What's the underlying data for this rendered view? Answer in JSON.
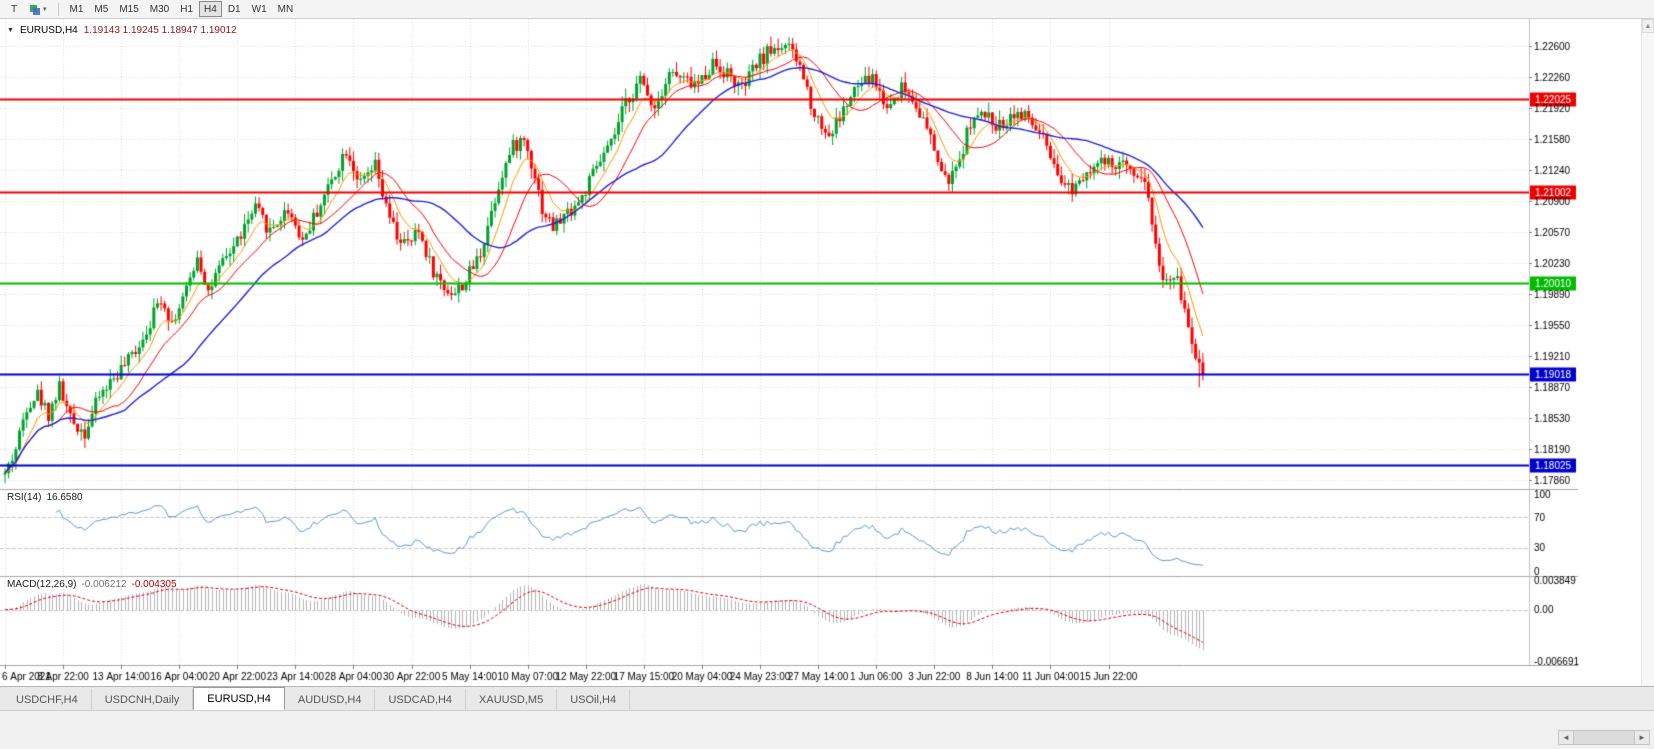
{
  "icons": {
    "caret_down": "▾",
    "title_marker": "▼",
    "scroll_up": "▲",
    "scroll_left": "◄",
    "scroll_right": "►"
  },
  "toolbar": {
    "pointer_label": "T",
    "timeframes": [
      "M1",
      "M5",
      "M15",
      "M30",
      "H1",
      "H4",
      "D1",
      "W1",
      "MN"
    ],
    "active_timeframe": "H4"
  },
  "chart": {
    "symbol_title": "EURUSD,H4",
    "ohlc_text": "1.19143 1.19245 1.18947 1.19012",
    "price_axis": [
      "1.22600",
      "1.22260",
      "1.21920",
      "1.21580",
      "1.21240",
      "1.20900",
      "1.20570",
      "1.20230",
      "1.19890",
      "1.19550",
      "1.19210",
      "1.18870",
      "1.18530",
      "1.18190",
      "1.17860"
    ],
    "time_axis": [
      "6 Apr 2021",
      "8 Apr 22:00",
      "13 Apr 14:00",
      "16 Apr 04:00",
      "20 Apr 22:00",
      "23 Apr 14:00",
      "28 Apr 04:00",
      "30 Apr 22:00",
      "5 May 14:00",
      "10 May 07:00",
      "12 May 22:00",
      "17 May 15:00",
      "20 May 04:00",
      "24 May 23:00",
      "27 May 14:00",
      "1 Jun 06:00",
      "3 Jun 22:00",
      "8 Jun 14:00",
      "11 Jun 04:00",
      "15 Jun 22:00"
    ],
    "hlines": [
      {
        "price": 1.22025,
        "text": "1.22025",
        "color": "#ee0000"
      },
      {
        "price": 1.21002,
        "text": "1.21002",
        "color": "#ee0000"
      },
      {
        "price": 1.2001,
        "text": "1.20010",
        "color": "#00bb00"
      },
      {
        "price": 1.19018,
        "text": "1.19018",
        "color": "#0000cc"
      },
      {
        "price": 1.18025,
        "text": "1.18025",
        "color": "#0000cc"
      }
    ]
  },
  "rsi_panel": {
    "name": "RSI(14)",
    "value_text": "16.6580",
    "line_color": "#5b9bd5",
    "dashed_levels": [
      70,
      30
    ],
    "levels": [
      {
        "text": "100",
        "value": 100
      },
      {
        "text": "70",
        "value": 70
      },
      {
        "text": "30",
        "value": 30
      },
      {
        "text": "0",
        "value": 0
      }
    ]
  },
  "macd_panel": {
    "name": "MACD(12,26,9)",
    "main_text": "-0.006212",
    "signal_text": "-0.004305",
    "hist_color": "#b4b4b4",
    "signal_color": "#e00000",
    "scale": [
      {
        "text": "0.003849",
        "value": 0.003849
      },
      {
        "text": "0.00",
        "value": 0
      },
      {
        "text": "-0.006691",
        "value": -0.006691
      }
    ]
  },
  "tabs": [
    {
      "label": "USDCHF,H4",
      "active": false
    },
    {
      "label": "USDCNH,Daily",
      "active": false
    },
    {
      "label": "EURUSD,H4",
      "active": true
    },
    {
      "label": "AUDUSD,H4",
      "active": false
    },
    {
      "label": "USDCAD,H4",
      "active": false
    },
    {
      "label": "XAUUSD,M5",
      "active": false
    },
    {
      "label": "USOil,H4",
      "active": false
    }
  ],
  "chart_data": {
    "type": "candlestick",
    "symbol": "EURUSD",
    "timeframe": "H4",
    "candle_count": 331,
    "candles_per_label": 16,
    "visible_price_range": [
      1.1776,
      1.229
    ],
    "up_color": "#00a22c",
    "down_color": "#ff0000",
    "noise": 0.0016,
    "seed": 42,
    "last_candle": {
      "o": 1.19143,
      "h": 1.19245,
      "l": 1.18947,
      "c": 1.19012
    },
    "anchors": [
      [
        0,
        1.1792
      ],
      [
        3,
        1.182
      ],
      [
        6,
        1.1868
      ],
      [
        9,
        1.188
      ],
      [
        12,
        1.1858
      ],
      [
        15,
        1.1888
      ],
      [
        18,
        1.1852
      ],
      [
        22,
        1.1838
      ],
      [
        26,
        1.1878
      ],
      [
        30,
        1.1898
      ],
      [
        34,
        1.1916
      ],
      [
        38,
        1.1942
      ],
      [
        43,
        1.1986
      ],
      [
        46,
        1.1958
      ],
      [
        50,
        1.1992
      ],
      [
        53,
        1.2032
      ],
      [
        56,
        1.1992
      ],
      [
        60,
        1.2022
      ],
      [
        64,
        1.2048
      ],
      [
        69,
        1.2082
      ],
      [
        73,
        1.2058
      ],
      [
        78,
        1.2082
      ],
      [
        82,
        1.2048
      ],
      [
        87,
        1.2088
      ],
      [
        91,
        1.2122
      ],
      [
        94,
        1.2148
      ],
      [
        98,
        1.2108
      ],
      [
        102,
        1.2128
      ],
      [
        105,
        1.2082
      ],
      [
        108,
        1.2052
      ],
      [
        111,
        1.2042
      ],
      [
        114,
        1.2058
      ],
      [
        118,
        1.2014
      ],
      [
        121,
        1.1996
      ],
      [
        124,
        1.199
      ],
      [
        127,
        1.2004
      ],
      [
        131,
        1.2034
      ],
      [
        134,
        1.208
      ],
      [
        137,
        1.2122
      ],
      [
        140,
        1.215
      ],
      [
        143,
        1.2158
      ],
      [
        146,
        1.212
      ],
      [
        148,
        1.2082
      ],
      [
        151,
        1.2062
      ],
      [
        155,
        1.2078
      ],
      [
        159,
        1.2094
      ],
      [
        163,
        1.2128
      ],
      [
        167,
        1.2152
      ],
      [
        171,
        1.2198
      ],
      [
        175,
        1.2222
      ],
      [
        179,
        1.2194
      ],
      [
        183,
        1.2232
      ],
      [
        187,
        1.2222
      ],
      [
        191,
        1.2218
      ],
      [
        195,
        1.2242
      ],
      [
        199,
        1.223
      ],
      [
        203,
        1.2212
      ],
      [
        207,
        1.224
      ],
      [
        211,
        1.2256
      ],
      [
        215,
        1.2262
      ],
      [
        219,
        1.2238
      ],
      [
        223,
        1.2186
      ],
      [
        227,
        1.2162
      ],
      [
        231,
        1.219
      ],
      [
        235,
        1.2216
      ],
      [
        239,
        1.2226
      ],
      [
        243,
        1.2192
      ],
      [
        247,
        1.2216
      ],
      [
        251,
        1.2198
      ],
      [
        255,
        1.2158
      ],
      [
        259,
        1.2112
      ],
      [
        262,
        1.2122
      ],
      [
        266,
        1.2178
      ],
      [
        270,
        1.2184
      ],
      [
        274,
        1.2172
      ],
      [
        278,
        1.2188
      ],
      [
        282,
        1.218
      ],
      [
        286,
        1.2158
      ],
      [
        290,
        1.2112
      ],
      [
        294,
        1.2105
      ],
      [
        298,
        1.2126
      ],
      [
        302,
        1.2132
      ],
      [
        306,
        1.2128
      ],
      [
        310,
        1.213
      ],
      [
        313,
        1.2118
      ],
      [
        315,
        1.2098
      ],
      [
        317,
        1.204
      ],
      [
        319,
        1.2008
      ],
      [
        321,
        1.1998
      ],
      [
        323,
        1.2005
      ],
      [
        325,
        1.1972
      ],
      [
        327,
        1.1938
      ],
      [
        329,
        1.1897
      ],
      [
        330,
        1.1901
      ]
    ],
    "moving_averages": [
      {
        "name": "fast",
        "type": "ema",
        "period": 8,
        "color": "#ff9900"
      },
      {
        "name": "medium",
        "type": "sma",
        "period": 16,
        "color": "#ff0000"
      },
      {
        "name": "slow",
        "type": "sma",
        "period": 34,
        "color": "#2222dd"
      }
    ],
    "indicators": {
      "rsi": {
        "period": 14,
        "last_value": 16.658
      },
      "macd": {
        "fast": 12,
        "slow": 26,
        "signal": 9,
        "last_main": -0.006212,
        "last_signal": -0.004305
      }
    }
  }
}
